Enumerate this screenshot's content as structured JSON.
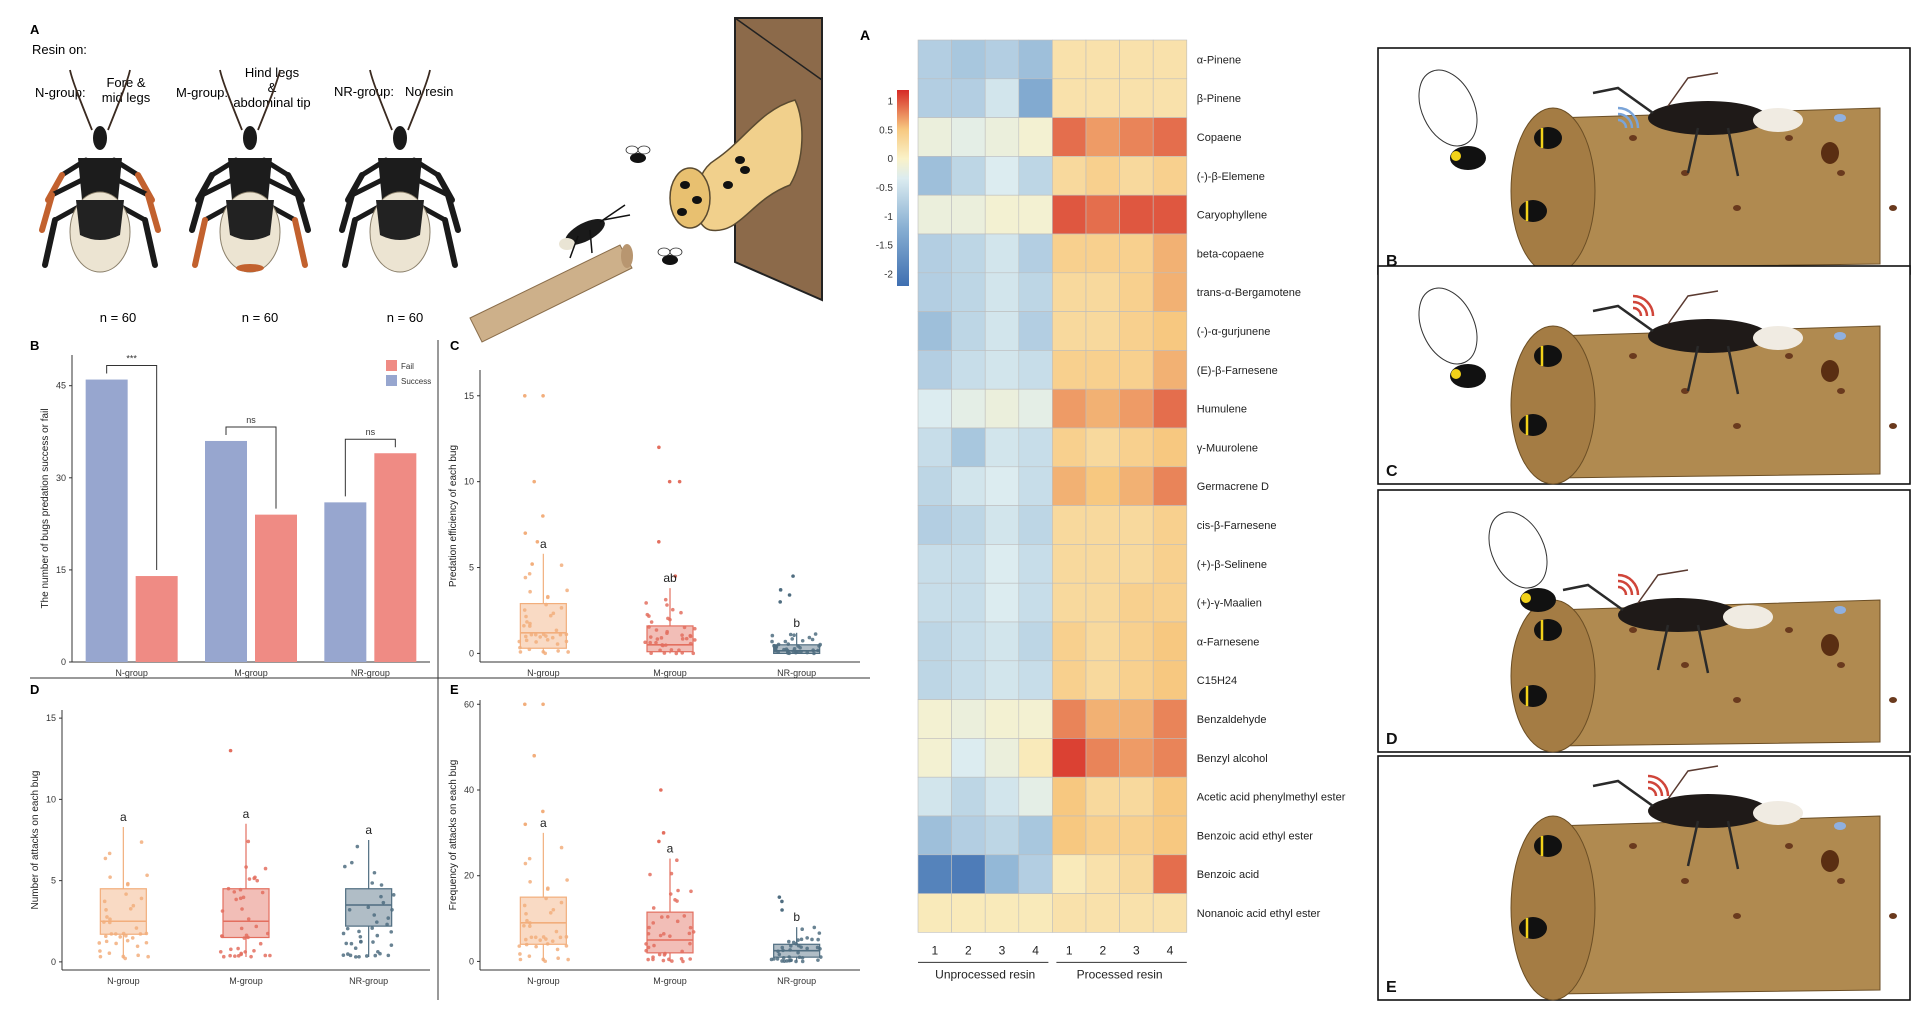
{
  "figure1": {
    "panel_a": {
      "label": "A",
      "resin_on": "Resin on:",
      "groups": [
        {
          "name": "N-group:",
          "desc": [
            "Fore &",
            "mid legs"
          ],
          "n": "n = 60"
        },
        {
          "name": "M-group:",
          "desc": [
            "Hind legs",
            "&",
            "abdominal tip"
          ],
          "n": "n = 60"
        },
        {
          "name": "NR-group:",
          "desc": [
            "No resin"
          ],
          "n": "n = 60"
        }
      ]
    },
    "panel_b_label": "B",
    "panel_c_label": "C",
    "panel_d_label": "D",
    "panel_e_label": "E"
  },
  "figure2": {
    "panel_a_label": "A",
    "scene_labels": [
      "B",
      "C",
      "D",
      "E"
    ]
  },
  "colors": {
    "fail": "#ef8b84",
    "success": "#97a6cf",
    "n_group": "#f2ae7c",
    "m_group": "#e36f5f",
    "nr_group": "#4f6d80",
    "log_tan": "#b08a50",
    "heat_low": "#3f6fb1",
    "heat_high": "#d62a26"
  },
  "chart_data": [
    {
      "id": "B",
      "type": "bar",
      "ylabel": "The number of bugs predation success or fail",
      "categories": [
        "N-group",
        "M-group",
        "NR-group"
      ],
      "series": [
        {
          "name": "Success",
          "values": [
            46,
            36,
            26
          ]
        },
        {
          "name": "Fail",
          "values": [
            14,
            24,
            34
          ]
        }
      ],
      "legend": [
        "Fail",
        "Success"
      ],
      "yticks": [
        0,
        15,
        30,
        45
      ],
      "ylim": [
        0,
        50
      ],
      "significance": [
        "***",
        "ns",
        "ns"
      ]
    },
    {
      "id": "C",
      "type": "box",
      "ylabel": "Predation efficiency of each bug",
      "categories": [
        "N-group",
        "M-group",
        "NR-group"
      ],
      "yticks": [
        0,
        5,
        10,
        15
      ],
      "ylim": [
        -0.5,
        16.5
      ],
      "boxes": [
        {
          "q1": 0.3,
          "median": 1.2,
          "q3": 2.9,
          "low": 0,
          "high": 5.8
        },
        {
          "q1": 0.1,
          "median": 0.5,
          "q3": 1.6,
          "low": 0,
          "high": 3.8
        },
        {
          "q1": 0,
          "median": 0.15,
          "q3": 0.5,
          "low": 0,
          "high": 1.2
        }
      ],
      "letters": [
        "a",
        "ab",
        "b"
      ],
      "outliers": [
        [
          15,
          15,
          10,
          8,
          7,
          6.5,
          5.2
        ],
        [
          12,
          10,
          10,
          6.5,
          4.5
        ],
        [
          3.7,
          3.4,
          3.0,
          4.5
        ]
      ]
    },
    {
      "id": "D",
      "type": "box",
      "ylabel": "Number of attacks on each bug",
      "categories": [
        "N-group",
        "M-group",
        "NR-group"
      ],
      "yticks": [
        0,
        5,
        10,
        15
      ],
      "ylim": [
        -0.5,
        15.5
      ],
      "boxes": [
        {
          "q1": 1.7,
          "median": 2.5,
          "q3": 4.5,
          "low": 0.2,
          "high": 8.3
        },
        {
          "q1": 1.5,
          "median": 2.5,
          "q3": 4.5,
          "low": 0.3,
          "high": 8.5
        },
        {
          "q1": 2.2,
          "median": 3.5,
          "q3": 4.5,
          "low": 0.3,
          "high": 7.5
        }
      ],
      "letters": [
        "a",
        "a",
        "a"
      ],
      "outliers": [
        [],
        [
          13
        ],
        []
      ]
    },
    {
      "id": "E",
      "type": "box",
      "ylabel": "Frequency of attacks on each bug",
      "categories": [
        "N-group",
        "M-group",
        "NR-group"
      ],
      "yticks": [
        0,
        20,
        40,
        60
      ],
      "ylim": [
        -2,
        61
      ],
      "boxes": [
        {
          "q1": 4,
          "median": 9,
          "q3": 15,
          "low": 0,
          "high": 30
        },
        {
          "q1": 2,
          "median": 5,
          "q3": 11.5,
          "low": 0,
          "high": 24
        },
        {
          "q1": 1,
          "median": 2.5,
          "q3": 4,
          "low": 0,
          "high": 8
        }
      ],
      "letters": [
        "a",
        "a",
        "b"
      ],
      "outliers": [
        [
          60,
          60,
          48,
          35,
          32
        ],
        [
          40,
          30,
          28
        ],
        [
          15,
          14,
          12
        ]
      ]
    },
    {
      "id": "heatmap",
      "type": "heatmap",
      "rows": [
        "α-Pinene",
        "β-Pinene",
        "Copaene",
        "(-)-β-Elemene",
        "Caryophyllene",
        "beta-copaene",
        "trans-α-Bergamotene",
        "(-)-α-gurjunene",
        "(E)-β-Farnesene",
        "Humulene",
        "γ-Muurolene",
        "Germacrene D",
        "cis-β-Farnesene",
        "(+)-β-Selinene",
        "(+)-γ-Maalien",
        "α-Farnesene",
        "C15H24",
        "Benzaldehyde",
        "Benzyl alcohol",
        "Acetic acid phenylmethyl ester",
        "Benzoic acid ethyl ester",
        "Benzoic acid",
        "Nonanoic acid ethyl ester"
      ],
      "columns": [
        "1",
        "2",
        "3",
        "4",
        "1",
        "2",
        "3",
        "4"
      ],
      "groups": [
        "Unprocessed resin",
        "Processed resin"
      ],
      "values": [
        [
          -0.8,
          -0.9,
          -0.8,
          -1.0,
          0.2,
          0.2,
          0.2,
          0.2
        ],
        [
          -0.8,
          -0.8,
          -0.5,
          -1.3,
          0.2,
          0.2,
          0.2,
          0.2
        ],
        [
          -0.2,
          -0.3,
          -0.2,
          -0.1,
          0.9,
          0.7,
          0.8,
          0.9
        ],
        [
          -1.0,
          -0.7,
          -0.4,
          -0.7,
          0.3,
          0.4,
          0.3,
          0.4
        ],
        [
          -0.2,
          -0.2,
          -0.1,
          -0.1,
          1.0,
          0.9,
          1.0,
          1.0
        ],
        [
          -0.8,
          -0.7,
          -0.5,
          -0.8,
          0.4,
          0.4,
          0.4,
          0.6
        ],
        [
          -0.8,
          -0.7,
          -0.5,
          -0.7,
          0.3,
          0.3,
          0.4,
          0.6
        ],
        [
          -1.0,
          -0.7,
          -0.5,
          -0.8,
          0.3,
          0.3,
          0.4,
          0.5
        ],
        [
          -0.8,
          -0.6,
          -0.5,
          -0.6,
          0.4,
          0.4,
          0.4,
          0.6
        ],
        [
          -0.4,
          -0.3,
          -0.2,
          -0.3,
          0.7,
          0.6,
          0.7,
          0.9
        ],
        [
          -0.6,
          -0.9,
          -0.5,
          -0.6,
          0.4,
          0.3,
          0.4,
          0.5
        ],
        [
          -0.7,
          -0.5,
          -0.4,
          -0.6,
          0.6,
          0.5,
          0.6,
          0.8
        ],
        [
          -0.8,
          -0.7,
          -0.5,
          -0.7,
          0.3,
          0.3,
          0.3,
          0.4
        ],
        [
          -0.6,
          -0.6,
          -0.4,
          -0.6,
          0.3,
          0.3,
          0.3,
          0.4
        ],
        [
          -0.6,
          -0.6,
          -0.4,
          -0.6,
          0.3,
          0.3,
          0.4,
          0.4
        ],
        [
          -0.7,
          -0.6,
          -0.5,
          -0.7,
          0.4,
          0.3,
          0.4,
          0.5
        ],
        [
          -0.7,
          -0.6,
          -0.5,
          -0.6,
          0.4,
          0.3,
          0.4,
          0.5
        ],
        [
          -0.1,
          -0.2,
          -0.1,
          -0.1,
          0.8,
          0.6,
          0.6,
          0.8
        ],
        [
          -0.1,
          -0.4,
          -0.2,
          0.1,
          1.1,
          0.8,
          0.7,
          0.8
        ],
        [
          -0.5,
          -0.7,
          -0.5,
          -0.3,
          0.5,
          0.3,
          0.3,
          0.5
        ],
        [
          -1.0,
          -0.8,
          -0.7,
          -0.9,
          0.5,
          0.4,
          0.4,
          0.5
        ],
        [
          -1.9,
          -2.0,
          -1.1,
          -0.8,
          0.1,
          0.2,
          0.3,
          0.9
        ],
        [
          0.1,
          0.1,
          0.1,
          0.1,
          0.2,
          0.2,
          0.2,
          0.2
        ]
      ],
      "colorbar_ticks": [
        "1",
        "0.5",
        "0",
        "-0.5",
        "-1",
        "-1.5",
        "-2"
      ],
      "range": [
        -2.2,
        1.2
      ]
    }
  ]
}
